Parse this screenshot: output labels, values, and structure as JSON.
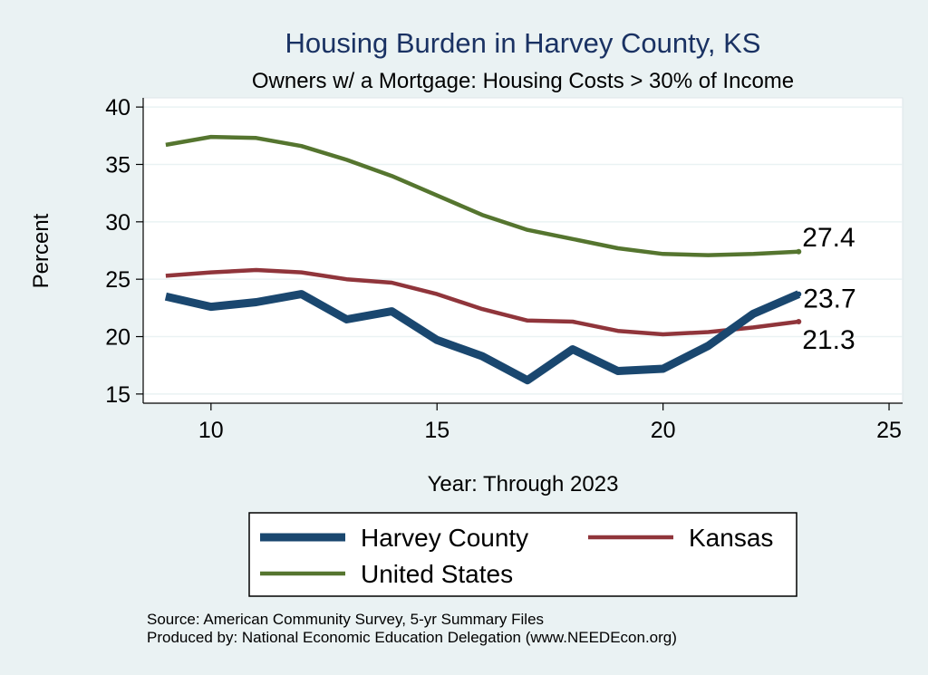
{
  "chart_data": {
    "type": "line",
    "title": "Housing Burden in Harvey County, KS",
    "subtitle": "Owners w/ a Mortgage: Housing Costs > 30% of Income",
    "xlabel": "Year: Through 2023",
    "ylabel": "Percent",
    "xlim": [
      8.5,
      25.3
    ],
    "ylim": [
      14.2,
      40.8
    ],
    "xticks": [
      10,
      15,
      20,
      25
    ],
    "yticks": [
      15,
      20,
      25,
      30,
      35,
      40
    ],
    "grid": true,
    "legend_position": "bottom",
    "x": [
      9,
      10,
      11,
      12,
      13,
      14,
      15,
      16,
      17,
      18,
      19,
      20,
      21,
      22,
      23
    ],
    "series": [
      {
        "name": "Harvey County",
        "color": "#1a476f",
        "values": [
          23.5,
          22.6,
          23.0,
          23.7,
          21.5,
          22.2,
          19.7,
          18.3,
          16.2,
          18.9,
          17.0,
          17.2,
          19.2,
          22.0,
          23.7
        ],
        "end_label": "23.7"
      },
      {
        "name": "Kansas",
        "color": "#90353b",
        "values": [
          25.3,
          25.6,
          25.8,
          25.6,
          25.0,
          24.7,
          23.7,
          22.4,
          21.4,
          21.3,
          20.5,
          20.2,
          20.4,
          20.8,
          21.3
        ],
        "end_label": "21.3"
      },
      {
        "name": "United States",
        "color": "#55752f",
        "values": [
          36.7,
          37.4,
          37.3,
          36.6,
          35.4,
          34.0,
          32.3,
          30.6,
          29.3,
          28.5,
          27.7,
          27.2,
          27.1,
          27.2,
          27.4
        ],
        "end_label": "27.4"
      }
    ]
  },
  "source": {
    "line1": "Source: American Community Survey, 5-yr Summary Files",
    "line2": "Produced by: National Economic Education Delegation (www.NEEDEcon.org)"
  }
}
